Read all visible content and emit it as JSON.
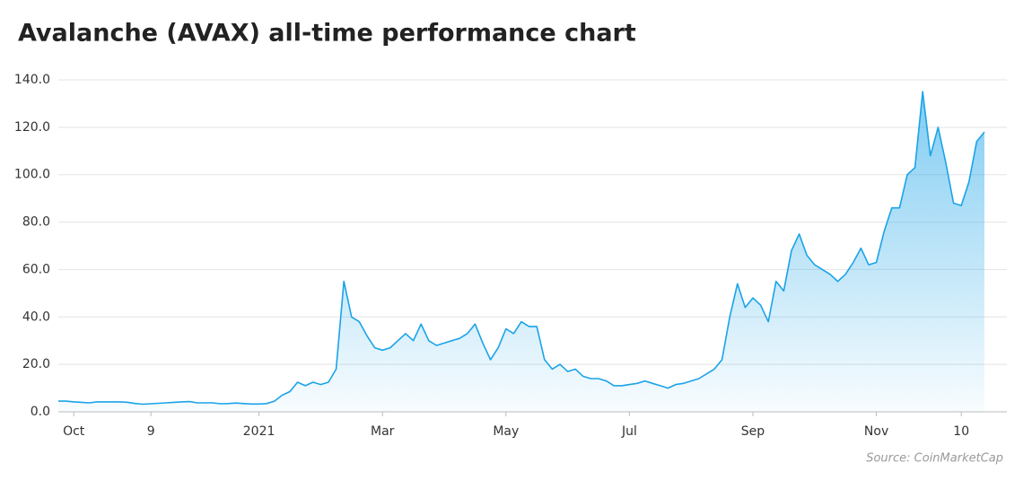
{
  "chart_data": {
    "type": "area",
    "title": "Avalanche (AVAX) all-time performance chart",
    "source": "Source: CoinMarketCap",
    "color": "#1aa3e8",
    "grid": true,
    "categories": [
      null,
      null,
      "Oct",
      null,
      null,
      null,
      null,
      null,
      null,
      null,
      null,
      null,
      "9",
      null,
      null,
      null,
      null,
      null,
      null,
      null,
      null,
      null,
      null,
      null,
      null,
      null,
      "2021",
      null,
      null,
      null,
      null,
      null,
      null,
      null,
      null,
      null,
      null,
      null,
      null,
      null,
      null,
      null,
      "Mar",
      null,
      null,
      null,
      null,
      null,
      null,
      null,
      null,
      null,
      null,
      null,
      null,
      null,
      null,
      null,
      "May",
      null,
      null,
      null,
      null,
      null,
      null,
      null,
      null,
      null,
      null,
      null,
      null,
      null,
      null,
      null,
      "Jul",
      null,
      null,
      null,
      null,
      null,
      null,
      null,
      null,
      null,
      null,
      null,
      null,
      null,
      null,
      null,
      "Sep",
      null,
      null,
      null,
      null,
      null,
      null,
      null,
      null,
      null,
      null,
      null,
      null,
      null,
      null,
      null,
      "Nov",
      null,
      null,
      null,
      null,
      null,
      null,
      null,
      null,
      null,
      null,
      "10",
      null,
      null,
      null
    ],
    "values": [
      4.5,
      4.5,
      4.2,
      4,
      3.8,
      4.2,
      4.2,
      4.2,
      4.2,
      4,
      3.5,
      3.2,
      3.4,
      3.6,
      3.8,
      4,
      4.2,
      4.3,
      3.8,
      3.8,
      3.8,
      3.4,
      3.5,
      3.7,
      3.5,
      3.3,
      3.3,
      3.5,
      4.5,
      7,
      8.5,
      12.5,
      11,
      12.5,
      11.5,
      12.5,
      18,
      55,
      40,
      38,
      32,
      27,
      26,
      27,
      30,
      33,
      30,
      37,
      30,
      28,
      29,
      30,
      31,
      33,
      37,
      29,
      22,
      27,
      35,
      33,
      38,
      36,
      36,
      22,
      18,
      20,
      17,
      18,
      15,
      14,
      14,
      13,
      11,
      11,
      11.5,
      12,
      13,
      12,
      11,
      10,
      11.5,
      12,
      13,
      14,
      16,
      18,
      22,
      40,
      54,
      44,
      48,
      45,
      38,
      55,
      51,
      68,
      75,
      66,
      62,
      60,
      58,
      55,
      58,
      63,
      69,
      62,
      63,
      76,
      86,
      86,
      100,
      103,
      135,
      108,
      120,
      105,
      88,
      87,
      97,
      114,
      118
    ],
    "ylim": [
      0,
      140
    ],
    "yticks": [
      {
        "value": 0,
        "label": "0.0"
      },
      {
        "value": 20,
        "label": "20.0"
      },
      {
        "value": 40,
        "label": "40.0"
      },
      {
        "value": 60,
        "label": "60.0"
      },
      {
        "value": 80,
        "label": "80.0"
      },
      {
        "value": 100,
        "label": "100.0"
      },
      {
        "value": 120,
        "label": "120.0"
      },
      {
        "value": 140,
        "label": "140.0"
      }
    ]
  }
}
